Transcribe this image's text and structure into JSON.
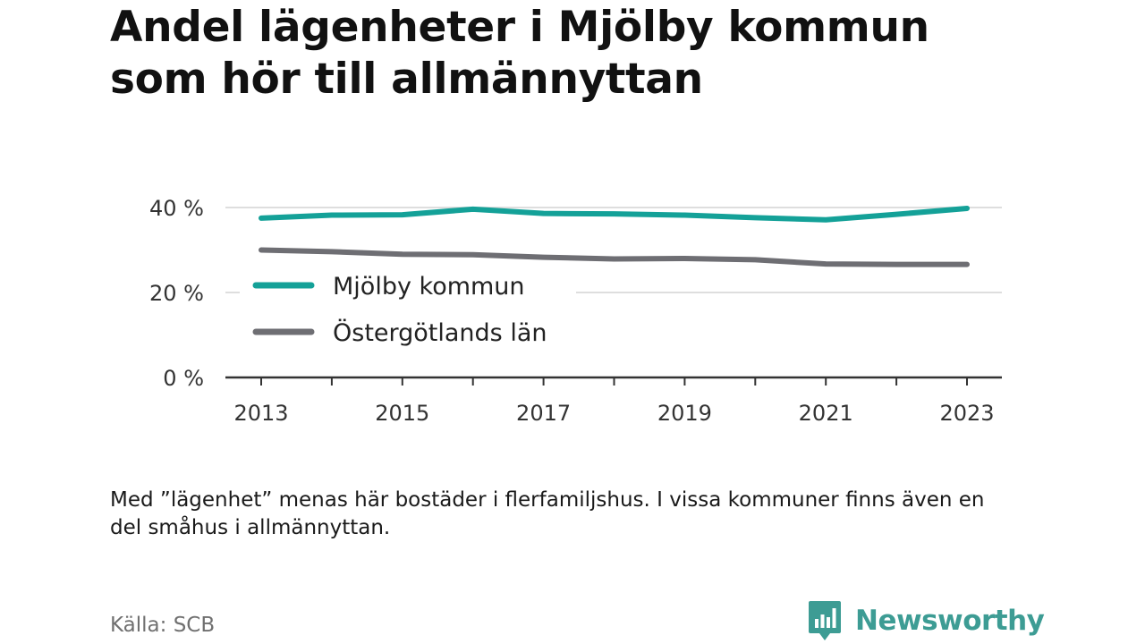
{
  "title": "Andel lägenheter i Mjölby kommun som hör till allmännyttan",
  "note": "Med ”lägenhet” menas här bostäder i flerfamiljshus. I vissa kommuner finns även en del småhus i allmännyttan.",
  "source": "Källa: SCB",
  "brand": {
    "name": "Newsworthy",
    "logo_icon": "bar-chart-speech-bubble-icon",
    "color": "#3d9c94"
  },
  "chart_data": {
    "type": "line",
    "x": [
      2013,
      2014,
      2015,
      2016,
      2017,
      2018,
      2019,
      2020,
      2021,
      2022,
      2023
    ],
    "x_tick_labels": [
      "2013",
      "2015",
      "2017",
      "2019",
      "2021",
      "2023"
    ],
    "y_tick_labels": [
      "0 %",
      "20 %",
      "40 %"
    ],
    "ylim": [
      0,
      40
    ],
    "grid": true,
    "legend_position": "left",
    "series": [
      {
        "name": "Mjölby kommun",
        "color": "#14a198",
        "values": [
          37.5,
          38.2,
          38.3,
          39.6,
          38.6,
          38.5,
          38.2,
          37.6,
          37.1,
          38.4,
          39.8
        ]
      },
      {
        "name": "Östergötlands län",
        "color": "#6e6e73",
        "values": [
          30.0,
          29.6,
          29.0,
          28.9,
          28.3,
          27.9,
          28.0,
          27.7,
          26.7,
          26.6,
          26.6
        ]
      }
    ]
  }
}
